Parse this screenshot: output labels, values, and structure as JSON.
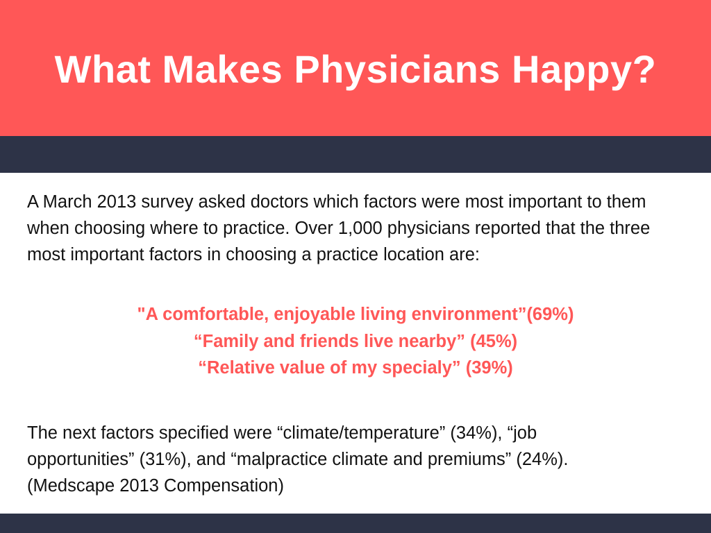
{
  "header": {
    "title": "What Makes Physicians Happy?"
  },
  "colors": {
    "accent": "#ff5757",
    "dark_band": "#2d3347",
    "text": "#111111",
    "background": "#ffffff"
  },
  "intro": {
    "text": "A March 2013 survey asked doctors which factors were most important to them when choosing where to practice. Over 1,000 physicians reported that the three most important factors in choosing a practice location are:"
  },
  "factors": [
    "\"A comfortable, enjoyable living environment”(69%)",
    "“Family and friends live nearby” (45%)",
    "“Relative value of my specialy” (39%)"
  ],
  "next_factors": {
    "line1": "The next factors specified were “climate/temperature” (34%), “job",
    "line2": "opportunities” (31%), and “malpractice climate and premiums” (24%).",
    "line3": "(Medscape 2013 Compensation)"
  }
}
